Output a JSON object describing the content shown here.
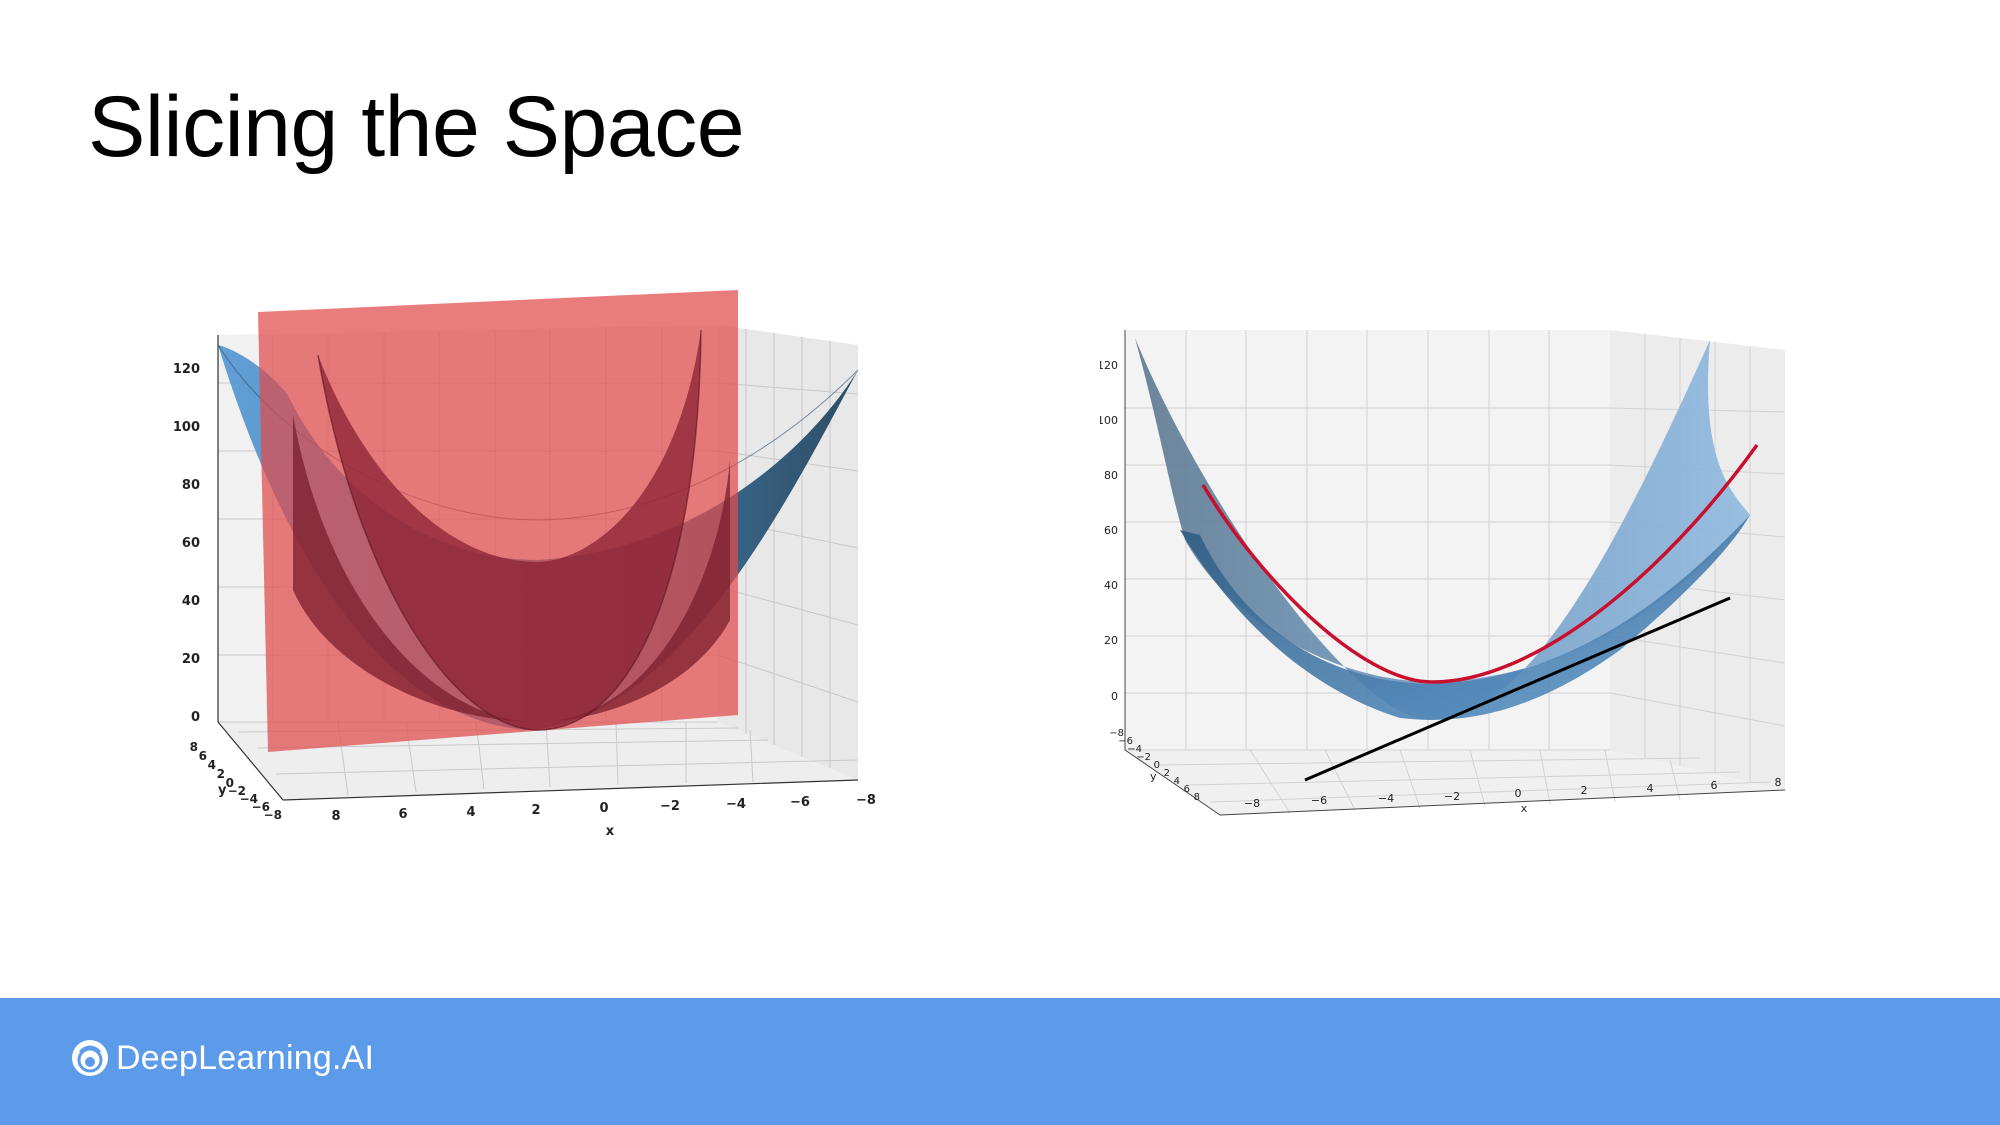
{
  "slide": {
    "title": "Slicing the Space"
  },
  "footer": {
    "brand": "DeepLearning.AI"
  },
  "colors": {
    "footer": "#5c9aea",
    "surface": "#4a7fb0",
    "plane": "#e14b4b",
    "curve": "#c8102e",
    "tangent": "#000000"
  },
  "icons": {
    "brand_logo": "deeplearning-ai-logo-icon"
  },
  "left_plot": {
    "z_ticks": [
      "0",
      "20",
      "40",
      "60",
      "80",
      "100",
      "120"
    ],
    "x_ticks": [
      "8",
      "6",
      "4",
      "2",
      "0",
      "−2",
      "−4",
      "−6",
      "−8"
    ],
    "y_ticks": [
      "8",
      "6",
      "4",
      "2",
      "0",
      "−2",
      "−4",
      "−6",
      "−8"
    ],
    "x_label": "x",
    "y_label": "y"
  },
  "right_plot": {
    "z_ticks": [
      "0",
      "20",
      "40",
      "60",
      "80",
      "100",
      "120"
    ],
    "x_ticks": [
      "−8",
      "−6",
      "−4",
      "−2",
      "0",
      "2",
      "4",
      "6",
      "8"
    ],
    "y_ticks": [
      "−8",
      "−6",
      "−4",
      "−2",
      "0",
      "2",
      "4",
      "6",
      "8"
    ],
    "x_label": "x",
    "y_label": "y"
  }
}
